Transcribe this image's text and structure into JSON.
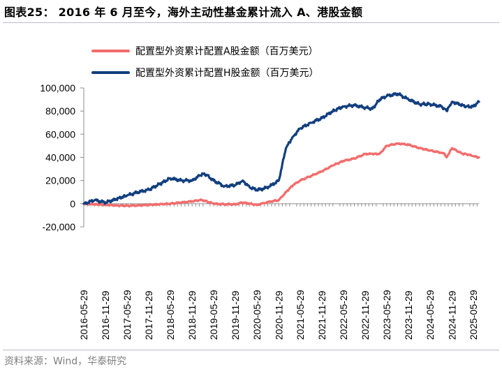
{
  "header": {
    "title": "图表25：  2016 年 6 月至今，海外主动性基金累计流入 A、港股金额"
  },
  "footer": {
    "source": "资料来源：Wind，华泰研究"
  },
  "colors": {
    "series_a": "#f26c6c",
    "series_h": "#123f7f",
    "axis": "#8c8c8c",
    "rule": "#b9bec8"
  },
  "chart_data": {
    "type": "line",
    "title": "",
    "xlabel": "",
    "ylabel": "",
    "ylim": [
      -20000,
      100000
    ],
    "yticks": [
      -20000,
      0,
      20000,
      40000,
      60000,
      80000,
      100000
    ],
    "ytick_labels": [
      "-20,000",
      "0",
      "20,000",
      "40,000",
      "60,000",
      "80,000",
      "100,000"
    ],
    "xtick_labels": [
      "2016-05-29",
      "2016-11-29",
      "2017-05-29",
      "2017-11-29",
      "2018-05-29",
      "2018-11-29",
      "2019-05-29",
      "2019-11-29",
      "2020-05-29",
      "2020-11-29",
      "2021-05-29",
      "2021-11-29",
      "2022-05-29",
      "2022-11-29",
      "2023-05-29",
      "2023-11-29",
      "2024-05-29",
      "2024-11-29",
      "2025-05-29"
    ],
    "x_range": [
      "2016-05-29",
      "2025-07-15"
    ],
    "grid": false,
    "legend_position": "top",
    "series": [
      {
        "name": "配置型外资累计配置A股金额（百万美元）",
        "x": [
          "2016-05-29",
          "2016-11-29",
          "2017-02-28",
          "2017-05-29",
          "2017-08-29",
          "2017-11-29",
          "2018-02-28",
          "2018-05-29",
          "2018-08-29",
          "2018-11-29",
          "2019-01-29",
          "2019-02-28",
          "2019-05-29",
          "2019-08-29",
          "2019-11-29",
          "2020-01-29",
          "2020-03-29",
          "2020-05-29",
          "2020-07-29",
          "2020-09-29",
          "2020-11-29",
          "2021-01-29",
          "2021-03-29",
          "2021-05-29",
          "2021-08-29",
          "2021-11-29",
          "2022-02-28",
          "2022-05-29",
          "2022-08-29",
          "2022-11-29",
          "2023-01-29",
          "2023-03-29",
          "2023-05-29",
          "2023-08-29",
          "2023-11-29",
          "2024-02-29",
          "2024-05-29",
          "2024-08-29",
          "2024-09-29",
          "2024-10-15",
          "2024-11-29",
          "2025-02-28",
          "2025-03-29",
          "2025-05-29",
          "2025-07-15"
        ],
        "values": [
          0,
          -1000,
          -1500,
          -1800,
          -1500,
          -1000,
          -500,
          0,
          1000,
          2000,
          3000,
          3000,
          0,
          -500,
          -500,
          1000,
          0,
          -1000,
          500,
          2000,
          3000,
          10000,
          16000,
          20000,
          24000,
          28000,
          33000,
          37000,
          39000,
          43000,
          43000,
          43000,
          50000,
          52000,
          51000,
          48000,
          46000,
          44000,
          43000,
          40000,
          48000,
          43000,
          43000,
          41000,
          40000
        ]
      },
      {
        "name": "配置型外资累计配置H股金额（百万美元）",
        "x": [
          "2016-05-29",
          "2016-08-29",
          "2016-11-29",
          "2017-02-28",
          "2017-05-29",
          "2017-08-29",
          "2017-11-29",
          "2018-02-28",
          "2018-05-29",
          "2018-08-29",
          "2018-11-29",
          "2019-01-29",
          "2019-02-28",
          "2019-03-29",
          "2019-05-29",
          "2019-08-29",
          "2019-11-29",
          "2020-01-29",
          "2020-03-29",
          "2020-05-29",
          "2020-07-29",
          "2020-09-29",
          "2020-11-29",
          "2021-01-29",
          "2021-03-29",
          "2021-05-29",
          "2021-08-29",
          "2021-11-29",
          "2022-02-28",
          "2022-05-29",
          "2022-08-29",
          "2022-11-29",
          "2023-01-29",
          "2023-03-29",
          "2023-05-29",
          "2023-08-29",
          "2023-11-29",
          "2024-02-29",
          "2024-05-29",
          "2024-08-29",
          "2024-09-29",
          "2024-10-15",
          "2024-11-29",
          "2025-02-28",
          "2025-03-29",
          "2025-05-29",
          "2025-07-15"
        ],
        "values": [
          0,
          3000,
          1000,
          4000,
          7000,
          10000,
          12000,
          17000,
          22000,
          20000,
          20000,
          24000,
          26000,
          25000,
          20000,
          15000,
          16000,
          20000,
          14000,
          12000,
          13000,
          16000,
          20000,
          48000,
          58000,
          65000,
          70000,
          74000,
          80000,
          84000,
          85000,
          83000,
          82000,
          90000,
          93000,
          95000,
          90000,
          86000,
          86000,
          84000,
          82000,
          80000,
          88000,
          85000,
          84000,
          84000,
          88000
        ]
      }
    ]
  }
}
